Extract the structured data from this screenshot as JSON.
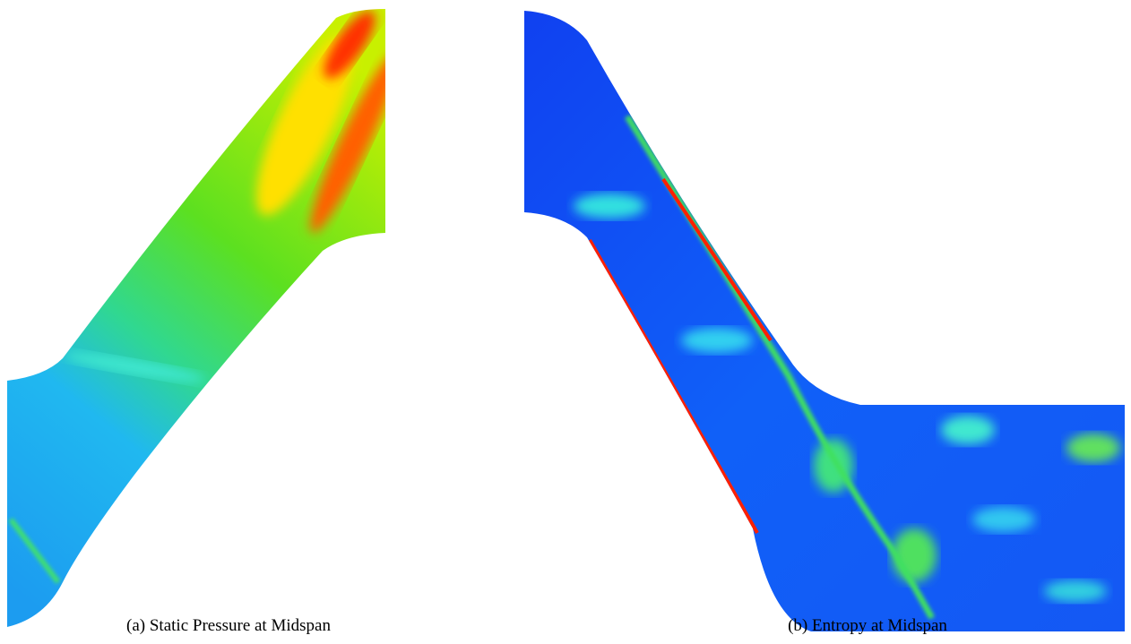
{
  "figures": [
    {
      "caption": "(a) Static Pressure at Midspan"
    },
    {
      "caption": "(b) Entropy at Midspan"
    }
  ]
}
